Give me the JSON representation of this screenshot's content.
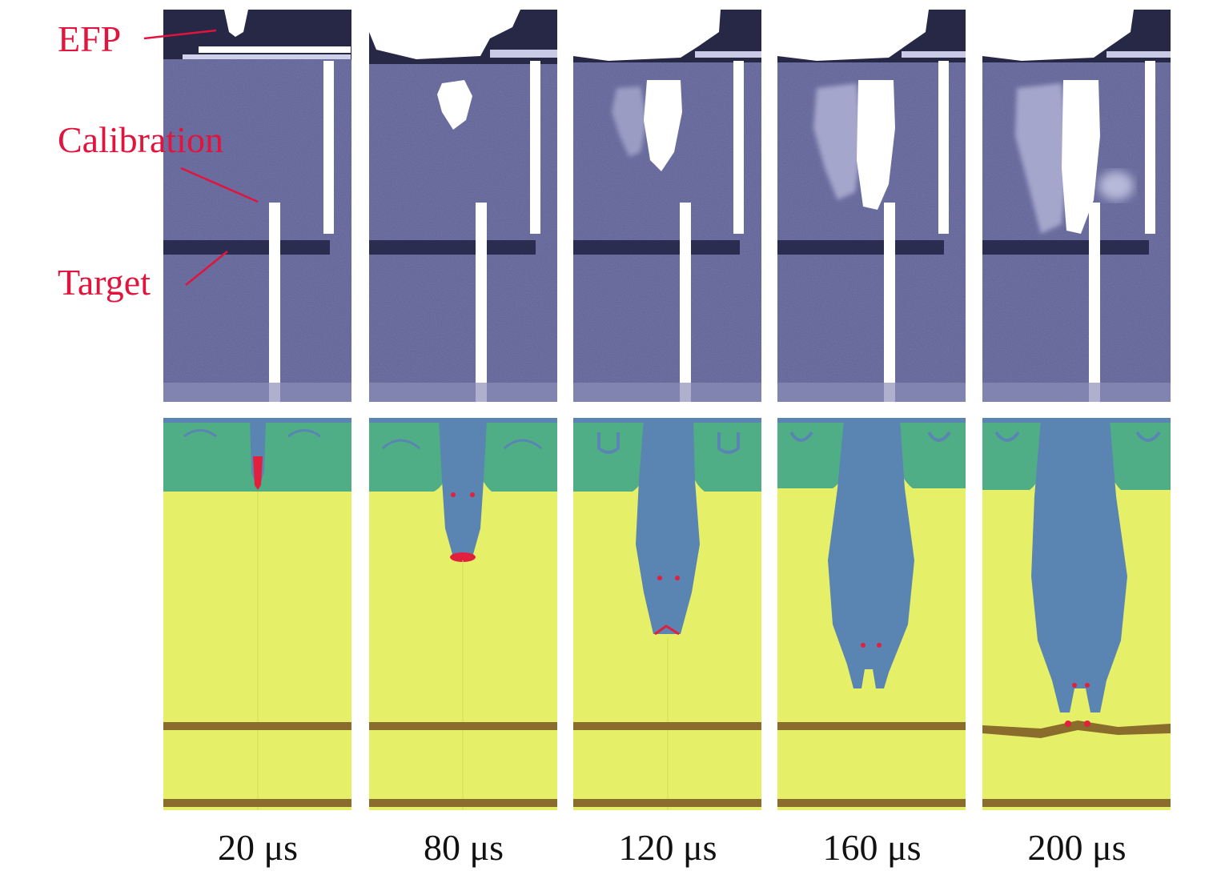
{
  "annotations": {
    "efp": "EFP",
    "calibration": "Calibration",
    "target": "Target"
  },
  "frames": [
    {
      "time_label": "20 μs"
    },
    {
      "time_label": "80 μs"
    },
    {
      "time_label": "120 μs"
    },
    {
      "time_label": "160 μs"
    },
    {
      "time_label": "200 μs"
    }
  ],
  "colors": {
    "photo_background": "#5c5f93",
    "photo_band": "#2c2e52",
    "sim_fluid": "#e6ef68",
    "sim_air": "#4fae86",
    "sim_jet": "#5a84b2",
    "sim_tip": "#e0203c",
    "sim_plate": "#8a6d2c",
    "annotation_text": "#e0143c"
  }
}
